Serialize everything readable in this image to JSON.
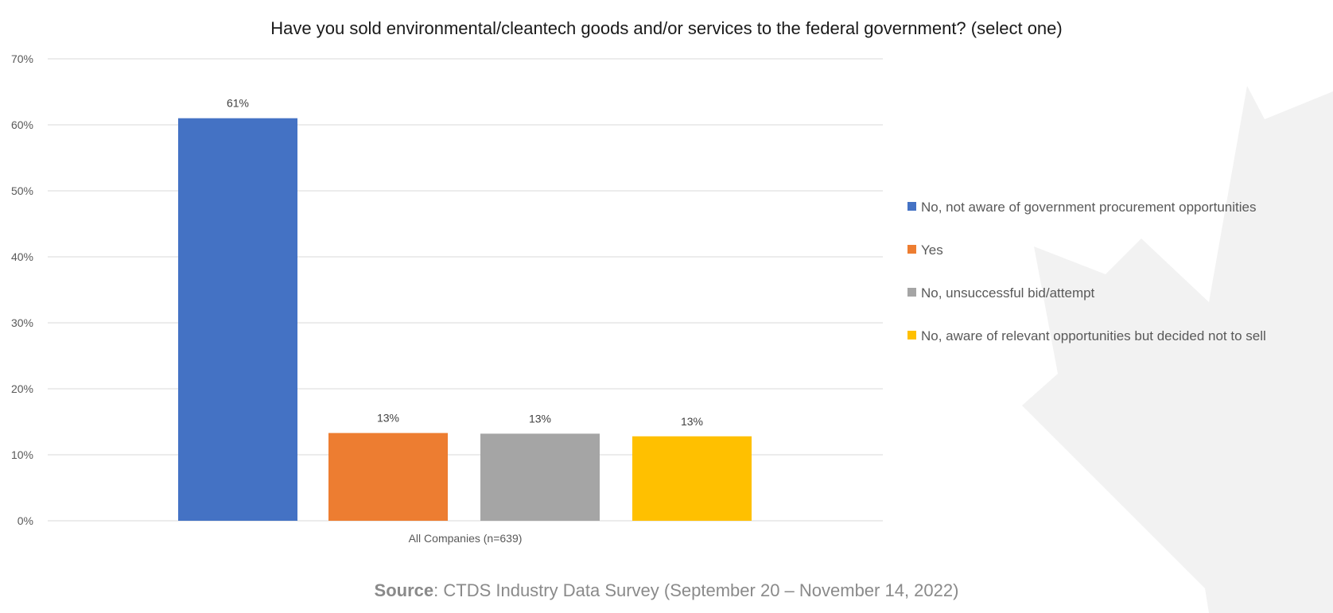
{
  "chart_data": {
    "type": "bar",
    "title": "Have you sold environmental/cleantech goods and/or services to the federal government? (select one)",
    "categories": [
      "All Companies (n=639)"
    ],
    "xlabel": "",
    "ylabel": "",
    "ylim": [
      0,
      70
    ],
    "yticks": [
      0,
      10,
      20,
      30,
      40,
      50,
      60,
      70
    ],
    "ytick_labels": [
      "0%",
      "10%",
      "20%",
      "30%",
      "40%",
      "50%",
      "60%",
      "70%"
    ],
    "grid": true,
    "legend_position": "right",
    "series": [
      {
        "name": "No, not aware of government procurement opportunities",
        "values": [
          61
        ],
        "label": "61%",
        "color": "#4472C4"
      },
      {
        "name": "Yes",
        "values": [
          13.3
        ],
        "label": "13%",
        "color": "#ED7D31"
      },
      {
        "name": "No, unsuccessful bid/attempt",
        "values": [
          13.2
        ],
        "label": "13%",
        "color": "#A5A5A5"
      },
      {
        "name": "No, aware of relevant opportunities but decided not to sell",
        "values": [
          12.8
        ],
        "label": "13%",
        "color": "#FFC000"
      }
    ]
  },
  "source": {
    "label": "Source",
    "text": ": CTDS Industry Data Survey (September 20 – November 14, 2022)"
  }
}
